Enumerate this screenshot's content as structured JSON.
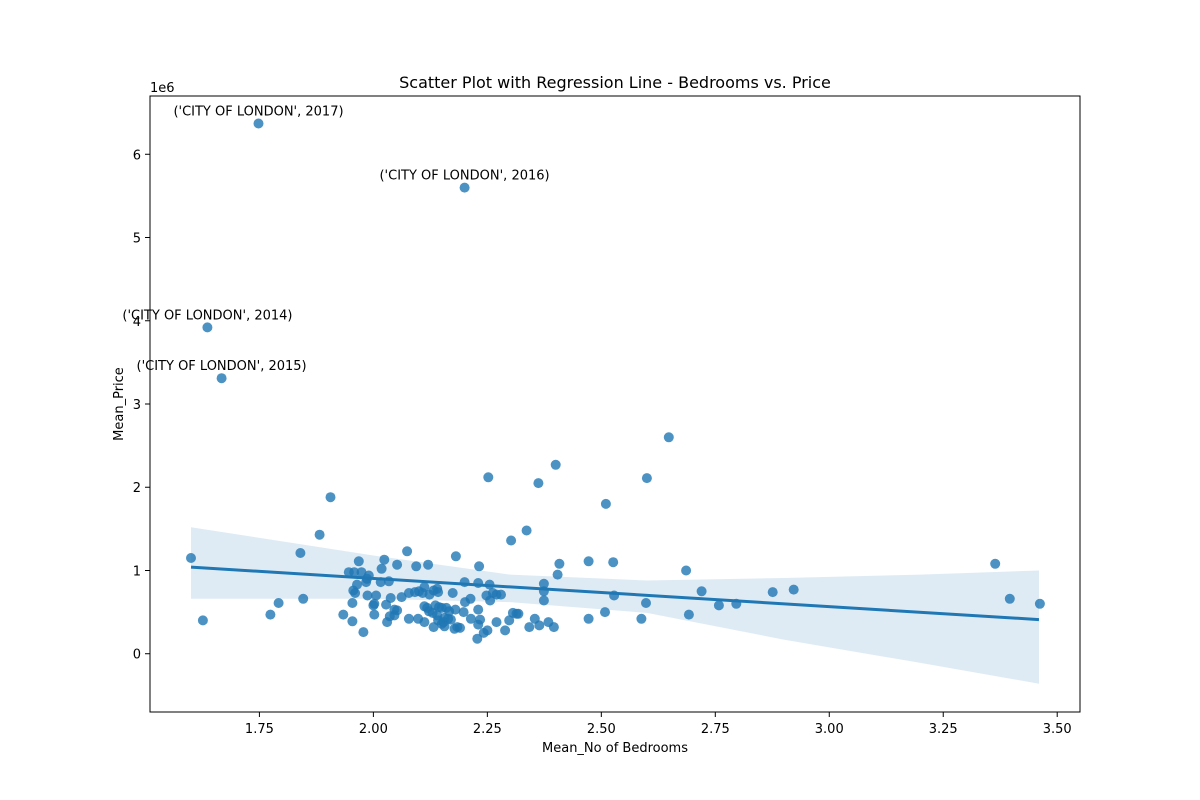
{
  "chart_data": {
    "type": "scatter",
    "title": "Scatter Plot with Regression Line - Bedrooms vs. Price",
    "xlabel": "Mean_No of Bedrooms",
    "ylabel": "Mean_Price",
    "y_offset_label": "1e6",
    "xlim": [
      1.51,
      3.55
    ],
    "ylim": [
      -700000,
      6700000
    ],
    "x_ticks": [
      1.75,
      2.0,
      2.25,
      2.5,
      2.75,
      3.0,
      3.25,
      3.5
    ],
    "x_tick_labels": [
      "1.75",
      "2.00",
      "2.25",
      "2.50",
      "2.75",
      "3.00",
      "3.25",
      "3.50"
    ],
    "y_ticks": [
      0,
      1000000,
      2000000,
      3000000,
      4000000,
      5000000,
      6000000
    ],
    "y_tick_labels": [
      "0",
      "1",
      "2",
      "3",
      "4",
      "5",
      "6"
    ],
    "grid": false,
    "colors": {
      "points": "#1f77b4",
      "line": "#1f77b4",
      "band": "#1f77b4"
    },
    "regression": {
      "x": [
        1.6,
        3.46
      ],
      "y": [
        1040000,
        410000
      ],
      "ci_upper": [
        [
          1.6,
          1520000
        ],
        [
          2.0,
          1180000
        ],
        [
          2.3,
          950000
        ],
        [
          2.6,
          880000
        ],
        [
          2.9,
          910000
        ],
        [
          3.2,
          950000
        ],
        [
          3.46,
          1000000
        ]
      ],
      "ci_lower": [
        [
          1.6,
          660000
        ],
        [
          2.0,
          660000
        ],
        [
          2.3,
          620000
        ],
        [
          2.6,
          490000
        ],
        [
          2.9,
          170000
        ],
        [
          3.2,
          -110000
        ],
        [
          3.46,
          -360000
        ]
      ]
    },
    "annotations": [
      {
        "text": "('CITY OF LONDON', 2017)",
        "x": 1.748,
        "y": 6370000
      },
      {
        "text": "('CITY OF LONDON', 2016)",
        "x": 2.2,
        "y": 5600000
      },
      {
        "text": "('CITY OF LONDON', 2014)",
        "x": 1.636,
        "y": 3920000
      },
      {
        "text": "('CITY OF LONDON', 2015)",
        "x": 1.667,
        "y": 3310000
      }
    ],
    "points": [
      [
        1.748,
        6370000
      ],
      [
        2.2,
        5600000
      ],
      [
        1.636,
        3920000
      ],
      [
        1.667,
        3310000
      ],
      [
        2.648,
        2600000
      ],
      [
        2.4,
        2270000
      ],
      [
        2.252,
        2120000
      ],
      [
        2.6,
        2110000
      ],
      [
        2.362,
        2050000
      ],
      [
        1.906,
        1880000
      ],
      [
        2.51,
        1800000
      ],
      [
        2.336,
        1480000
      ],
      [
        1.882,
        1430000
      ],
      [
        2.302,
        1360000
      ],
      [
        2.074,
        1230000
      ],
      [
        1.84,
        1210000
      ],
      [
        2.181,
        1170000
      ],
      [
        1.6,
        1150000
      ],
      [
        1.968,
        1110000
      ],
      [
        2.024,
        1130000
      ],
      [
        2.472,
        1110000
      ],
      [
        2.526,
        1100000
      ],
      [
        2.408,
        1080000
      ],
      [
        2.052,
        1070000
      ],
      [
        2.12,
        1070000
      ],
      [
        2.094,
        1050000
      ],
      [
        2.232,
        1050000
      ],
      [
        3.364,
        1080000
      ],
      [
        1.946,
        980000
      ],
      [
        1.958,
        980000
      ],
      [
        1.974,
        980000
      ],
      [
        2.686,
        1000000
      ],
      [
        1.99,
        940000
      ],
      [
        2.404,
        950000
      ],
      [
        2.018,
        1020000
      ],
      [
        1.986,
        900000
      ],
      [
        2.016,
        860000
      ],
      [
        2.034,
        870000
      ],
      [
        2.2,
        860000
      ],
      [
        2.23,
        850000
      ],
      [
        2.255,
        830000
      ],
      [
        2.374,
        840000
      ],
      [
        1.964,
        830000
      ],
      [
        1.984,
        860000
      ],
      [
        2.112,
        800000
      ],
      [
        2.14,
        780000
      ],
      [
        2.132,
        760000
      ],
      [
        2.1,
        750000
      ],
      [
        2.078,
        730000
      ],
      [
        2.091,
        740000
      ],
      [
        2.108,
        730000
      ],
      [
        2.123,
        710000
      ],
      [
        2.142,
        740000
      ],
      [
        2.174,
        730000
      ],
      [
        2.262,
        730000
      ],
      [
        2.27,
        710000
      ],
      [
        2.28,
        710000
      ],
      [
        2.248,
        700000
      ],
      [
        2.374,
        750000
      ],
      [
        2.72,
        750000
      ],
      [
        2.876,
        740000
      ],
      [
        2.922,
        770000
      ],
      [
        1.956,
        760000
      ],
      [
        1.96,
        730000
      ],
      [
        1.987,
        700000
      ],
      [
        2.006,
        700000
      ],
      [
        2.038,
        670000
      ],
      [
        2.062,
        680000
      ],
      [
        2.213,
        660000
      ],
      [
        2.201,
        620000
      ],
      [
        2.256,
        640000
      ],
      [
        2.374,
        640000
      ],
      [
        2.528,
        700000
      ],
      [
        2.598,
        610000
      ],
      [
        2.758,
        580000
      ],
      [
        2.796,
        600000
      ],
      [
        3.396,
        660000
      ],
      [
        3.462,
        600000
      ],
      [
        1.792,
        610000
      ],
      [
        1.846,
        660000
      ],
      [
        1.954,
        610000
      ],
      [
        2.002,
        600000
      ],
      [
        2.0,
        580000
      ],
      [
        2.028,
        590000
      ],
      [
        2.046,
        530000
      ],
      [
        2.052,
        520000
      ],
      [
        2.112,
        570000
      ],
      [
        2.118,
        550000
      ],
      [
        2.136,
        580000
      ],
      [
        2.144,
        560000
      ],
      [
        2.15,
        550000
      ],
      [
        2.16,
        550000
      ],
      [
        2.166,
        510000
      ],
      [
        2.18,
        530000
      ],
      [
        2.198,
        500000
      ],
      [
        2.23,
        530000
      ],
      [
        2.306,
        490000
      ],
      [
        2.314,
        480000
      ],
      [
        2.318,
        480000
      ],
      [
        2.508,
        500000
      ],
      [
        2.692,
        470000
      ],
      [
        1.774,
        470000
      ],
      [
        1.934,
        470000
      ],
      [
        2.002,
        470000
      ],
      [
        2.036,
        450000
      ],
      [
        2.046,
        460000
      ],
      [
        2.122,
        510000
      ],
      [
        2.13,
        490000
      ],
      [
        2.14,
        460000
      ],
      [
        2.156,
        430000
      ],
      [
        2.164,
        420000
      ],
      [
        2.078,
        420000
      ],
      [
        2.098,
        420000
      ],
      [
        2.112,
        380000
      ],
      [
        2.142,
        400000
      ],
      [
        2.154,
        380000
      ],
      [
        2.17,
        410000
      ],
      [
        2.214,
        420000
      ],
      [
        2.234,
        410000
      ],
      [
        2.298,
        400000
      ],
      [
        2.354,
        420000
      ],
      [
        2.472,
        420000
      ],
      [
        2.588,
        420000
      ],
      [
        1.626,
        400000
      ],
      [
        1.954,
        390000
      ],
      [
        2.03,
        380000
      ],
      [
        2.15,
        360000
      ],
      [
        2.184,
        320000
      ],
      [
        2.23,
        350000
      ],
      [
        2.27,
        380000
      ],
      [
        2.342,
        320000
      ],
      [
        2.364,
        340000
      ],
      [
        2.384,
        380000
      ],
      [
        2.396,
        320000
      ],
      [
        2.132,
        320000
      ],
      [
        2.156,
        330000
      ],
      [
        2.178,
        300000
      ],
      [
        2.242,
        250000
      ],
      [
        2.25,
        280000
      ],
      [
        2.289,
        280000
      ],
      [
        1.978,
        260000
      ],
      [
        2.228,
        180000
      ],
      [
        2.19,
        310000
      ]
    ]
  }
}
